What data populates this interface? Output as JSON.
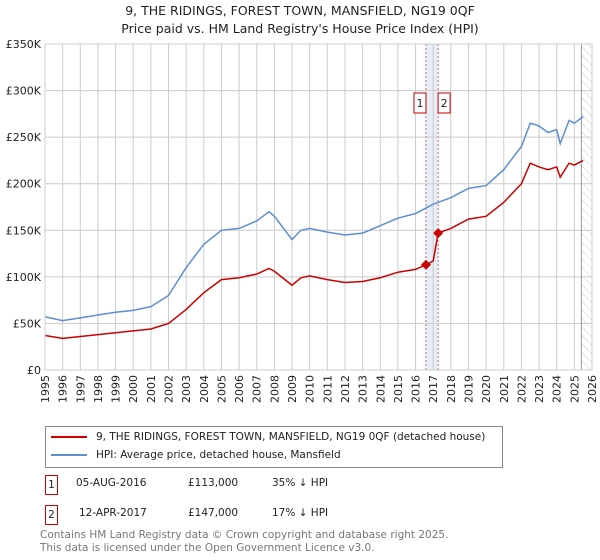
{
  "title": "9, THE RIDINGS, FOREST TOWN, MANSFIELD, NG19 0QF",
  "subtitle": "Price paid vs. HM Land Registry's House Price Index (HPI)",
  "chart_data": {
    "type": "line",
    "xlim": [
      1995,
      2026
    ],
    "ylim": [
      0,
      350000
    ],
    "x_ticks": [
      "1995",
      "1996",
      "1997",
      "1998",
      "1999",
      "2000",
      "2001",
      "2002",
      "2003",
      "2004",
      "2005",
      "2006",
      "2007",
      "2008",
      "2009",
      "2010",
      "2011",
      "2012",
      "2013",
      "2014",
      "2015",
      "2016",
      "2017",
      "2018",
      "2019",
      "2020",
      "2021",
      "2022",
      "2023",
      "2024",
      "2025",
      "2026"
    ],
    "y_ticks": [
      {
        "v": 0,
        "label": "£0"
      },
      {
        "v": 50000,
        "label": "£50K"
      },
      {
        "v": 100000,
        "label": "£100K"
      },
      {
        "v": 150000,
        "label": "£150K"
      },
      {
        "v": 200000,
        "label": "£200K"
      },
      {
        "v": 250000,
        "label": "£250K"
      },
      {
        "v": 300000,
        "label": "£300K"
      },
      {
        "v": 350000,
        "label": "£350K"
      }
    ],
    "grid": true,
    "series": [
      {
        "name": "9, THE RIDINGS, FOREST TOWN, MANSFIELD, NG19 0QF (detached house)",
        "color": "#cc0000",
        "x": [
          1995,
          1996,
          1997,
          1998,
          1999,
          2000,
          2001,
          2002,
          2003,
          2004,
          2005,
          2006,
          2007,
          2007.7,
          2008,
          2009,
          2009.5,
          2010,
          2011,
          2012,
          2013,
          2014,
          2015,
          2016,
          2016.59,
          2017.0,
          2017.28,
          2018,
          2019,
          2020,
          2021,
          2022,
          2022.5,
          2023,
          2023.5,
          2024,
          2024.2,
          2024.7,
          2025,
          2025.5
        ],
        "y": [
          37000,
          34000,
          36000,
          38000,
          40000,
          42000,
          44000,
          50000,
          65000,
          83000,
          97000,
          99000,
          103000,
          109000,
          106000,
          91000,
          99000,
          101000,
          97000,
          94000,
          95000,
          99000,
          105000,
          108000,
          113000,
          117000,
          147000,
          152000,
          162000,
          165000,
          180000,
          200000,
          222000,
          218000,
          215000,
          218000,
          207000,
          222000,
          220000,
          225000
        ]
      },
      {
        "name": "HPI: Average price, detached house, Mansfield",
        "color": "#5b8fd0",
        "x": [
          1995,
          1996,
          1997,
          1998,
          1999,
          2000,
          2001,
          2002,
          2003,
          2004,
          2005,
          2006,
          2007,
          2007.7,
          2008,
          2009,
          2009.5,
          2010,
          2011,
          2012,
          2013,
          2014,
          2015,
          2016,
          2016.6,
          2017,
          2018,
          2019,
          2020,
          2021,
          2022,
          2022.5,
          2023,
          2023.5,
          2024,
          2024.2,
          2024.7,
          2025,
          2025.5
        ],
        "y": [
          57000,
          53000,
          56000,
          59000,
          62000,
          64000,
          68000,
          80000,
          110000,
          135000,
          150000,
          152000,
          160000,
          170000,
          165000,
          140000,
          150000,
          152000,
          148000,
          145000,
          147000,
          155000,
          163000,
          168000,
          174000,
          178000,
          185000,
          195000,
          198000,
          215000,
          240000,
          265000,
          262000,
          255000,
          258000,
          243000,
          268000,
          265000,
          272000
        ]
      }
    ],
    "sales": [
      {
        "id": "1",
        "x": 2016.59,
        "y": 113000
      },
      {
        "id": "2",
        "x": 2017.28,
        "y": 147000
      }
    ],
    "projection_start": 2025.4
  },
  "legend": {
    "red": "9, THE RIDINGS, FOREST TOWN, MANSFIELD, NG19 0QF (detached house)",
    "blue": "HPI: Average price, detached house, Mansfield"
  },
  "transactions": [
    {
      "id": "1",
      "date": "05-AUG-2016",
      "price": "£113,000",
      "hpi": "35% ↓ HPI"
    },
    {
      "id": "2",
      "date": "12-APR-2017",
      "price": "£147,000",
      "hpi": "17% ↓ HPI"
    }
  ],
  "footer": [
    "Contains HM Land Registry data © Crown copyright and database right 2025.",
    "This data is licensed under the Open Government Licence v3.0."
  ]
}
